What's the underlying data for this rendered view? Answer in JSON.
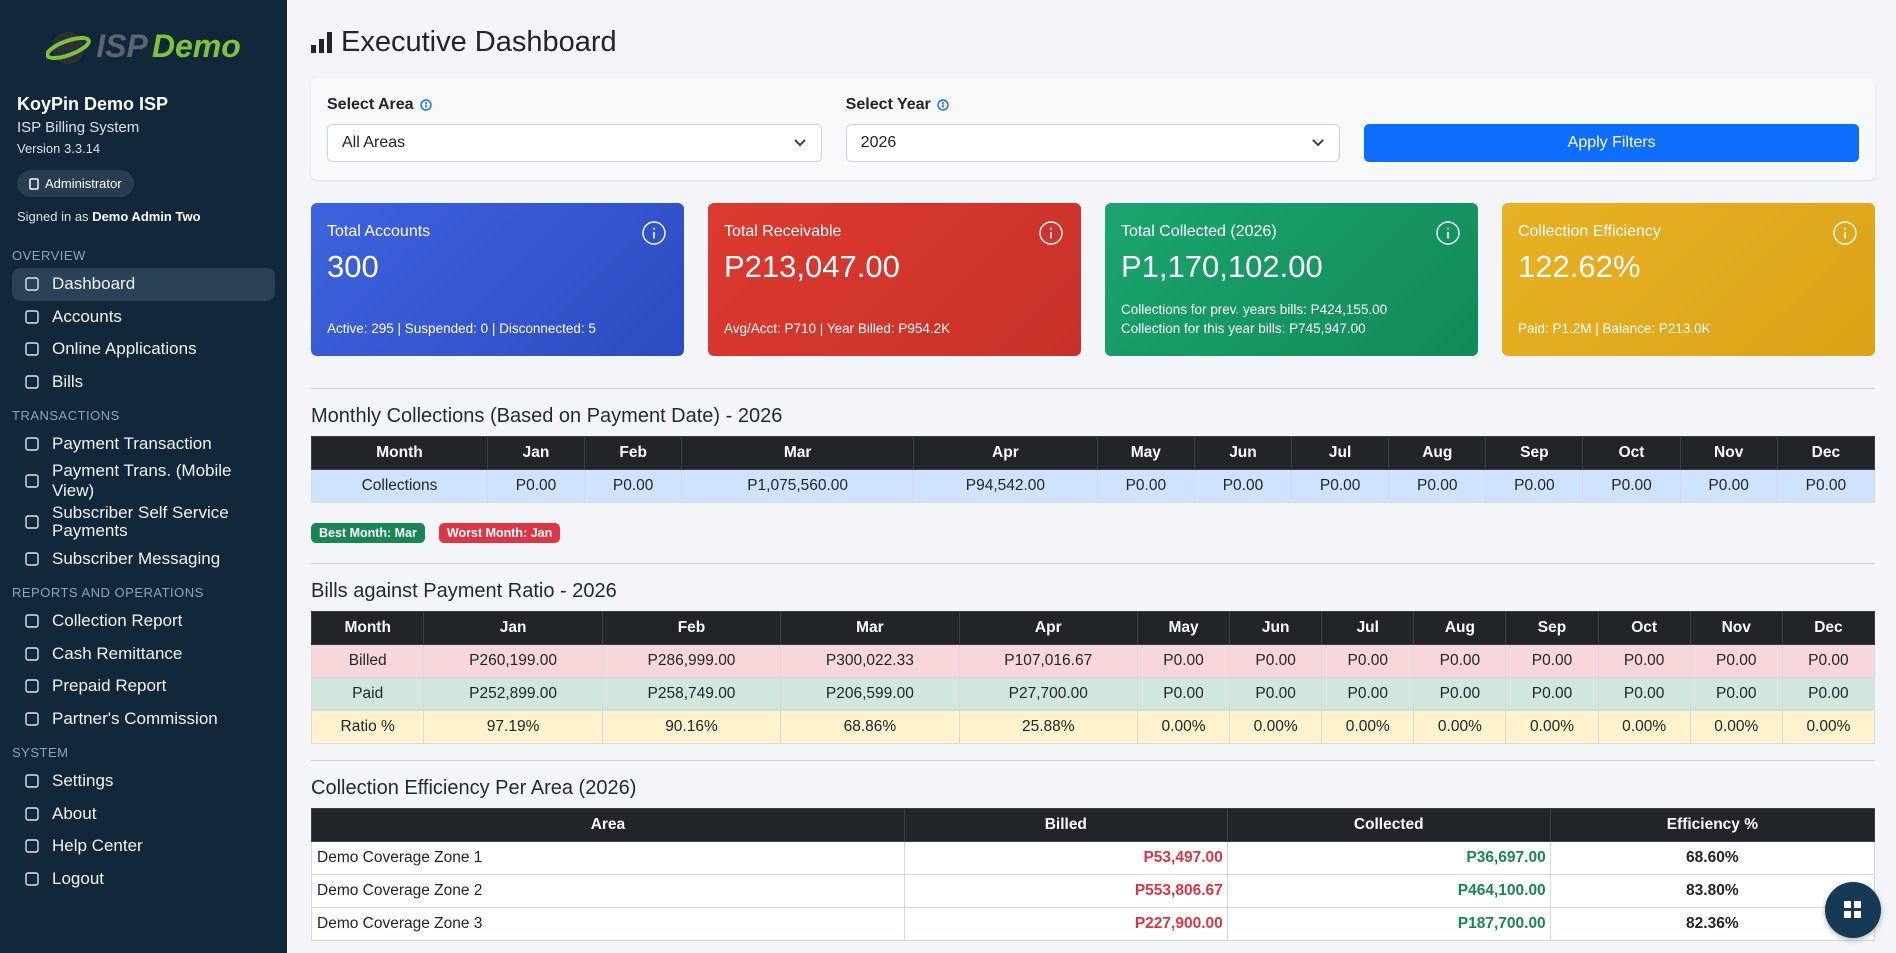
{
  "sidebar": {
    "logo_a": "ISP",
    "logo_b": "Demo",
    "company": "KoyPin Demo ISP",
    "system": "ISP Billing System",
    "version": "Version 3.3.14",
    "role": "Administrator",
    "signed_in_prefix": "Signed in as",
    "user": "Demo Admin Two",
    "sections": [
      {
        "title": "OVERVIEW",
        "items": [
          "Dashboard",
          "Accounts",
          "Online Applications",
          "Bills"
        ]
      },
      {
        "title": "TRANSACTIONS",
        "items": [
          "Payment Transaction",
          "Payment Trans. (Mobile View)",
          "Subscriber Self Service Payments",
          "Subscriber Messaging"
        ]
      },
      {
        "title": "REPORTS AND OPERATIONS",
        "items": [
          "Collection Report",
          "Cash Remittance",
          "Prepaid Report",
          "Partner's Commission"
        ]
      },
      {
        "title": "SYSTEM",
        "items": [
          "Settings",
          "About",
          "Help Center",
          "Logout"
        ]
      }
    ]
  },
  "header": {
    "title": "Executive Dashboard"
  },
  "filters": {
    "area_label": "Select Area",
    "area_value": "All Areas",
    "year_label": "Select Year",
    "year_value": "2026",
    "button": "Apply Filters"
  },
  "cards": [
    {
      "title": "Total Accounts",
      "value": "300",
      "notes": [
        "Active: 295 | Suspended: 0 | Disconnected: 5"
      ]
    },
    {
      "title": "Total Receivable",
      "value": "P213,047.00",
      "notes": [
        "Avg/Acct: P710 | Year Billed: P954.2K"
      ]
    },
    {
      "title": "Total Collected (2026)",
      "value": "P1,170,102.00",
      "notes": [
        "Collections for prev. years bills: P424,155.00",
        "Collection for this year bills: P745,947.00"
      ]
    },
    {
      "title": "Collection Efficiency",
      "value": "122.62%",
      "notes": [
        "Paid: P1.2M | Balance: P213.0K"
      ]
    }
  ],
  "monthly": {
    "title": "Monthly Collections (Based on Payment Date) - 2026",
    "columns": [
      "Month",
      "Jan",
      "Feb",
      "Mar",
      "Apr",
      "May",
      "Jun",
      "Jul",
      "Aug",
      "Sep",
      "Oct",
      "Nov",
      "Dec"
    ],
    "rows": [
      [
        "Collections",
        "P0.00",
        "P0.00",
        "P1,075,560.00",
        "P94,542.00",
        "P0.00",
        "P0.00",
        "P0.00",
        "P0.00",
        "P0.00",
        "P0.00",
        "P0.00",
        "P0.00"
      ]
    ],
    "best": "Best Month: Mar",
    "worst": "Worst Month: Jan"
  },
  "ratio": {
    "title": "Bills against Payment Ratio - 2026",
    "columns": [
      "Month",
      "Jan",
      "Feb",
      "Mar",
      "Apr",
      "May",
      "Jun",
      "Jul",
      "Aug",
      "Sep",
      "Oct",
      "Nov",
      "Dec"
    ],
    "rows": [
      [
        "Billed",
        "P260,199.00",
        "P286,999.00",
        "P300,022.33",
        "P107,016.67",
        "P0.00",
        "P0.00",
        "P0.00",
        "P0.00",
        "P0.00",
        "P0.00",
        "P0.00",
        "P0.00"
      ],
      [
        "Paid",
        "P252,899.00",
        "P258,749.00",
        "P206,599.00",
        "P27,700.00",
        "P0.00",
        "P0.00",
        "P0.00",
        "P0.00",
        "P0.00",
        "P0.00",
        "P0.00",
        "P0.00"
      ],
      [
        "Ratio %",
        "97.19%",
        "90.16%",
        "68.86%",
        "25.88%",
        "0.00%",
        "0.00%",
        "0.00%",
        "0.00%",
        "0.00%",
        "0.00%",
        "0.00%",
        "0.00%"
      ]
    ]
  },
  "area": {
    "title": "Collection Efficiency Per Area (2026)",
    "columns": [
      "Area",
      "Billed",
      "Collected",
      "Efficiency %"
    ],
    "rows": [
      [
        "Demo Coverage Zone 1",
        "P53,497.00",
        "P36,697.00",
        "68.60%"
      ],
      [
        "Demo Coverage Zone 2",
        "P553,806.67",
        "P464,100.00",
        "83.80%"
      ],
      [
        "Demo Coverage Zone 3",
        "P227,900.00",
        "P187,700.00",
        "82.36%"
      ]
    ]
  }
}
